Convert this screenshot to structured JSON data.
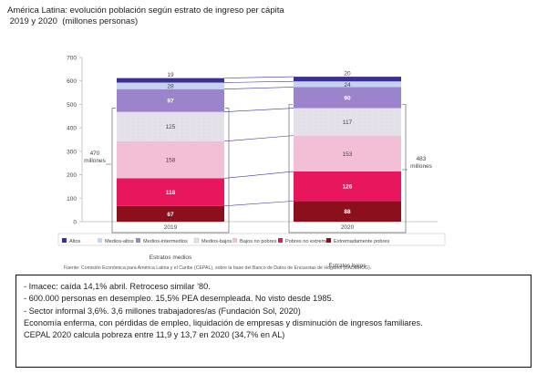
{
  "header": {
    "title_line1": "América Latina: evolución población según estrato de ingreso per cápita",
    "title_line2": " 2019 y 2020  (millones personas)"
  },
  "chart_data": {
    "type": "bar",
    "stacked": true,
    "title": "América Latina: evolución población según estrato de ingreso per cápita 2019 y 2020 (millones personas)",
    "categories": [
      "2019",
      "2020"
    ],
    "ylim": [
      0,
      700
    ],
    "yticks": [
      0,
      100,
      200,
      300,
      400,
      500,
      600,
      700
    ],
    "series": [
      {
        "name": "Extremadamente pobres",
        "values": [
          67,
          88
        ],
        "color": "#8c0f1e"
      },
      {
        "name": "Pobres no extremos",
        "values": [
          118,
          126
        ],
        "color": "#e8175d"
      },
      {
        "name": "Bajos no pobres",
        "values": [
          158,
          153
        ],
        "color": "#f3bfd6"
      },
      {
        "name": "Medios-bajos",
        "values": [
          125,
          117
        ],
        "color": "#e4e1ea"
      },
      {
        "name": "Medios-intermedios",
        "values": [
          97,
          90
        ],
        "color": "#9b84cc"
      },
      {
        "name": "Medios-altos",
        "values": [
          28,
          24
        ],
        "color": "#c5d3f0"
      },
      {
        "name": "Altos",
        "values": [
          19,
          20
        ],
        "color": "#3b2f94"
      }
    ],
    "legend_position": "bottom",
    "brackets": [
      {
        "label": "Estratos medios"
      },
      {
        "label": "Estratos bajos"
      }
    ],
    "side_annotations": {
      "left": [
        "470",
        "millones"
      ],
      "right": [
        "483",
        "millones"
      ]
    }
  },
  "source": "Fuente: Comisión Económica para América Latina y el Caribe (CEPAL), sobre la base del Banco de Datos de Encuestas de Hogares (BADEHOG).",
  "notes": [
    "- Imacec: caída 14,1% abril.  Retroceso similar ’80.",
    "- 600.000 personas en desempleo. 15,5% PEA desempleada. No visto desde 1985.",
    "- Sector informal 3,6%. 3,6 millones trabajadores/as (Fundación Sol, 2020)",
    "Economía enferma, con pérdidas de empleo, liquidación de empresas y disminución de ingresos familiares.",
    "CEPAL 2020 calcula pobreza entre 11,9 y 13,7 en 2020 (34,7% en AL)"
  ]
}
